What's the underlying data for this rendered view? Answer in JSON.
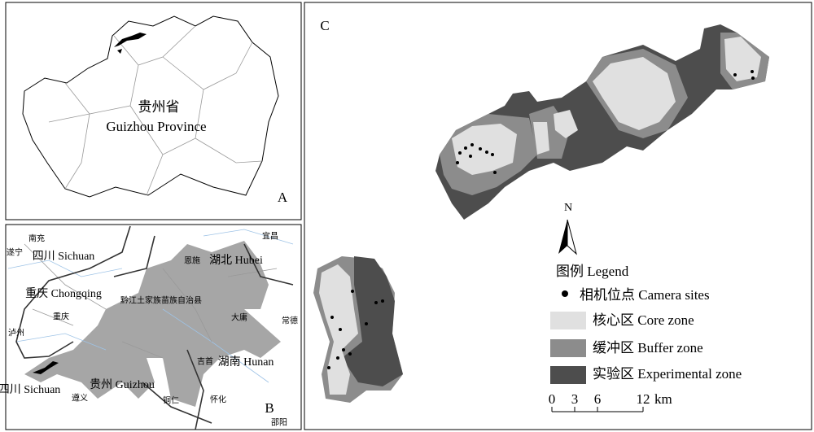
{
  "panel_a": {
    "label": "A",
    "name_zh": "贵州省",
    "name_en": "Guizhou Province"
  },
  "panel_b": {
    "label": "B",
    "places": [
      "南充",
      "遂宁",
      "四川 Sichuan",
      "重庆 Chongqing",
      "重庆",
      "泸州",
      "四川 Sichuan",
      "遵义",
      "贵州 Guizhou",
      "铜仁",
      "黔江土家族苗族自治县",
      "恩施",
      "湖北 Hubei",
      "宜昌",
      "大庸",
      "常德",
      "吉首",
      "湖南 Hunan",
      "怀化",
      "邵阳"
    ]
  },
  "panel_c": {
    "label": "C",
    "north": "N",
    "legend": {
      "title": "图例 Legend",
      "items": [
        "相机位点 Camera sites",
        "核心区 Core zone",
        "缓冲区 Buffer zone",
        "实验区 Experimental zone"
      ]
    },
    "scale": {
      "ticks": [
        0,
        3,
        6,
        12
      ],
      "unit": "km"
    }
  }
}
